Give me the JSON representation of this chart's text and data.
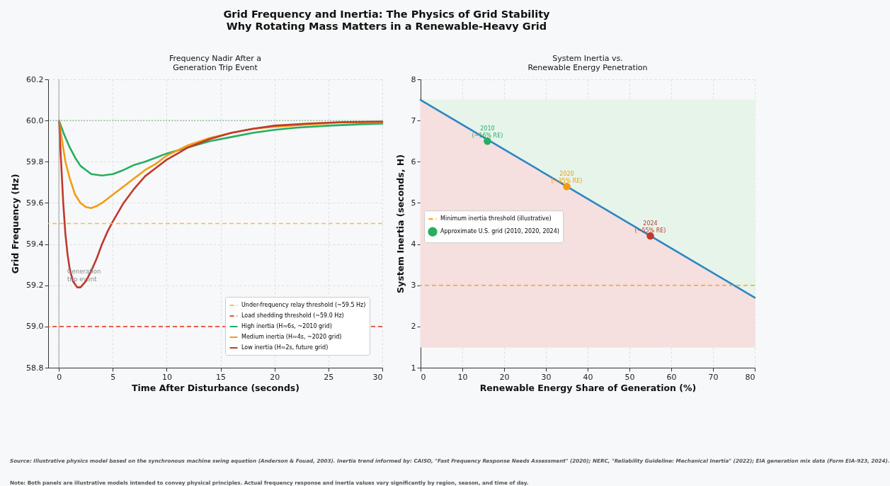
{
  "chart_data": [
    {
      "type": "other",
      "title": "Grid Frequency and Inertia: The Physics of Grid Stability",
      "subtitle": "Why Rotating Mass Matters in a Renewable-Heavy Grid",
      "annotations": [
        "Source: Illustrative physics model based on the synchronous machine swing equation (Anderson & Fouad, 2003). Inertia trend informed by: CAISO, \"Fast Frequency Response Needs Assessment\" (2020); NERC, \"Reliability Guideline: Mechanical Inertia\" (2022); EIA generation mix data (Form EIA-923, 2024).",
        "Note: Both panels are illustrative models intended to convey physical principles. Actual frequency response and inertia values vary significantly by region, season, and time of day."
      ]
    },
    {
      "type": "line",
      "title": "Frequency Nadir After a\nGeneration Trip Event",
      "xlabel": "Time After Disturbance (seconds)",
      "ylabel": "Grid Frequency (Hz)",
      "xlim": [
        -1,
        30
      ],
      "xticks": [
        0,
        5,
        10,
        15,
        20,
        25,
        30
      ],
      "ylim": [
        58.8,
        60.2
      ],
      "yticks": [
        58.8,
        {
          "value": 59,
          "label": "59.0"
        },
        59.2,
        59.4,
        59.6,
        59.8,
        {
          "value": 60,
          "label": "60.0"
        },
        60.2
      ],
      "grid": true,
      "legend": "bottom right",
      "line_style": "solid",
      "marker": "none",
      "series": [
        {
          "name": "High inertia (H≈6s, ~2010 grid)",
          "color": "#27ae60",
          "x": [
            0,
            0.5,
            1,
            1.5,
            2,
            2.5,
            3,
            4,
            5,
            6,
            7,
            8,
            9,
            10,
            12,
            14,
            16,
            18,
            20,
            22,
            25,
            28,
            30
          ],
          "values": [
            60,
            59.93,
            59.87,
            59.82,
            59.78,
            59.76,
            59.74,
            59.733,
            59.74,
            59.76,
            59.785,
            59.8,
            59.82,
            59.84,
            59.87,
            59.9,
            59.92,
            59.94,
            59.955,
            59.965,
            59.975,
            59.982,
            59.985
          ]
        },
        {
          "name": "Medium inertia (H≈4s, ~2020 grid)",
          "color": "#f39c12",
          "x": [
            0,
            0.3,
            0.6,
            1,
            1.5,
            2,
            2.5,
            3,
            3.5,
            4,
            5,
            6,
            7,
            8,
            9,
            10,
            12,
            14,
            16,
            18,
            20,
            23,
            26,
            30
          ],
          "values": [
            60,
            59.9,
            59.8,
            59.72,
            59.64,
            59.6,
            59.58,
            59.575,
            59.585,
            59.6,
            59.64,
            59.68,
            59.72,
            59.76,
            59.79,
            59.83,
            59.88,
            59.915,
            59.94,
            59.96,
            59.97,
            59.98,
            59.99,
            59.993
          ]
        },
        {
          "name": "Low inertia (H≈2s, future grid)",
          "color": "#c0392b",
          "x": [
            0,
            0.2,
            0.4,
            0.6,
            0.8,
            1,
            1.3,
            1.7,
            2,
            2.5,
            3,
            3.5,
            4,
            4.5,
            5,
            6,
            7,
            8,
            9,
            10,
            12,
            14,
            16,
            18,
            20,
            23,
            26,
            30
          ],
          "values": [
            60,
            59.8,
            59.6,
            59.45,
            59.35,
            59.28,
            59.22,
            59.19,
            59.19,
            59.22,
            59.27,
            59.33,
            59.4,
            59.46,
            59.51,
            59.6,
            59.67,
            59.73,
            59.77,
            59.81,
            59.87,
            59.91,
            59.94,
            59.96,
            59.975,
            59.985,
            59.992,
            59.995
          ]
        }
      ],
      "ref_lines": [
        {
          "axis": "y",
          "value": 59.5,
          "label": "Under-frequency relay threshold (~59.5 Hz)",
          "color": "#f7bb4d",
          "line_style": "dashed"
        },
        {
          "axis": "y",
          "value": 59,
          "label": "Load shedding threshold (~59.0 Hz)",
          "color": "#e74c3c",
          "line_style": "dashed"
        },
        {
          "axis": "y",
          "value": 60,
          "color": "#8fbf9a",
          "line_style": "dotted"
        },
        {
          "axis": "x",
          "value": 0,
          "color": "#aaaaaa",
          "line_style": "solid"
        }
      ],
      "annotations": [
        "Generation\ntrip event"
      ]
    },
    {
      "type": "line",
      "title": "System Inertia vs.\nRenewable Energy Penetration",
      "xlabel": "Renewable Energy Share of Generation (%)",
      "ylabel": "System Inertia (seconds, H)",
      "xlim": [
        0,
        80
      ],
      "xticks": [
        0,
        10,
        20,
        30,
        40,
        50,
        60,
        70,
        80
      ],
      "ylim": [
        1,
        8
      ],
      "yticks": [
        1,
        2,
        3,
        4,
        5,
        6,
        7,
        8
      ],
      "grid": true,
      "legend": "center left",
      "series": [
        {
          "type": "area",
          "color": "#f5dfdf",
          "x": [
            0,
            80
          ],
          "values": [
            null,
            null
          ],
          "lower": [
            1.5,
            1.5
          ],
          "upper": [
            7.5,
            2.7
          ]
        },
        {
          "type": "area",
          "color": "#e6f4ea",
          "x": [
            0,
            80
          ],
          "values": [
            null,
            null
          ],
          "lower": [
            7.5,
            2.7
          ],
          "upper": [
            7.5,
            7.5
          ]
        },
        {
          "type": "line",
          "color": "#2e86c1",
          "x": [
            0,
            20,
            40,
            60,
            80
          ],
          "values": [
            7.5,
            6.3,
            5.1,
            3.9,
            2.7
          ]
        },
        {
          "type": "scatter",
          "name": "Approximate U.S. grid (2010, 2020, 2024)",
          "x": [
            16,
            35,
            55
          ],
          "values": [
            6.5,
            5.4,
            4.2
          ],
          "colors": [
            "#27ae60",
            "#f39c12",
            "#c0392b"
          ],
          "marker": "circle"
        }
      ],
      "ref_lines": [
        {
          "axis": "y",
          "value": 3,
          "label": "Minimum inertia threshold (illustrative)",
          "color": "#f5a623",
          "line_style": "dashed"
        }
      ],
      "annotations": [
        {
          "text": "2010\n(~16% RE)",
          "x": 16,
          "y": 6.5
        },
        {
          "text": "2020\n(~35% RE)",
          "x": 35,
          "y": 5.4
        },
        {
          "text": "2024\n(~55% RE)",
          "x": 55,
          "y": 4.2
        }
      ]
    }
  ]
}
